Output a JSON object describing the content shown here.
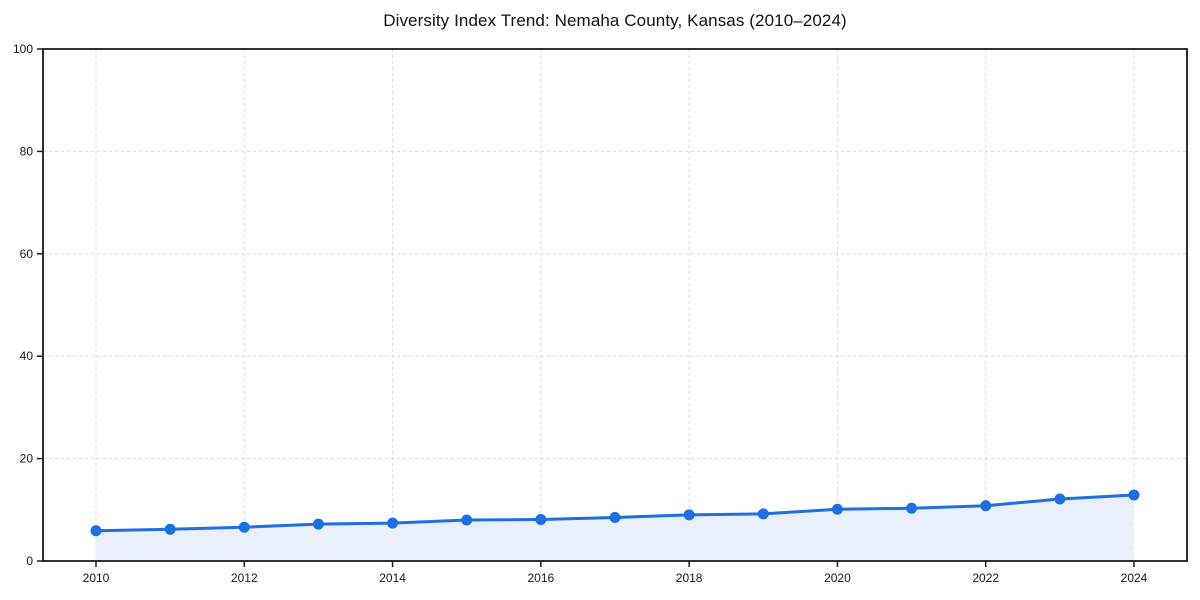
{
  "chart_data": {
    "type": "line",
    "title": "Diversity Index Trend: Nemaha County, Kansas (2010–2024)",
    "x": [
      2010,
      2011,
      2012,
      2013,
      2014,
      2015,
      2016,
      2017,
      2018,
      2019,
      2020,
      2021,
      2022,
      2023,
      2024
    ],
    "series": [
      {
        "name": "Diversity Index",
        "values": [
          5.9,
          6.2,
          6.6,
          7.2,
          7.4,
          8.0,
          8.1,
          8.5,
          9.0,
          9.2,
          10.1,
          10.3,
          10.8,
          12.1,
          12.9
        ]
      }
    ],
    "xlabel": "",
    "ylabel": "",
    "ylim": [
      0,
      100
    ],
    "yticks": [
      0,
      20,
      40,
      60,
      80,
      100
    ],
    "xticks": [
      2010,
      2012,
      2014,
      2016,
      2018,
      2020,
      2022,
      2024
    ],
    "grid": true,
    "grid_style": "dashed",
    "legend_position": "none",
    "area_fill": true,
    "marker": "circle",
    "colors": {
      "line": "#1e6fe3",
      "marker": "#1e6fe3",
      "area": "#e9f0fc",
      "grid": "#dcdcdc",
      "spine": "#1a1a1a",
      "tick_text": "#1a1a1a",
      "background": "#ffffff"
    }
  }
}
